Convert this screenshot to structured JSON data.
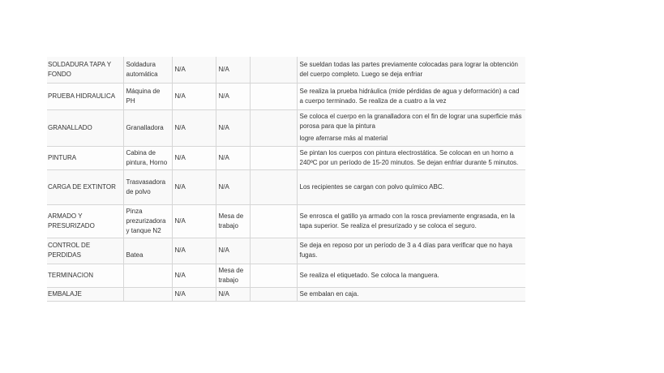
{
  "rows": [
    {
      "process": "SOLDADURA TAPA Y FONDO",
      "machine": "Soldadura automática",
      "c3": "N/A",
      "c4": "N/A",
      "c5": "",
      "description": [
        "Se sueldan todas las partes previamente colocadas para lograr la obtención del cuerpo completo. Luego se deja enfriar"
      ]
    },
    {
      "process": "PRUEBA HIDRAULICA",
      "machine": "Máquina de PH",
      "c3": "N/A",
      "c4": "N/A",
      "c5": "",
      "description": [
        "Se realiza la prueba hidráulica (mide pérdidas de agua y deformación) a cad a cuerpo terminado. Se realiza de a cuatro a la vez"
      ]
    },
    {
      "process": "GRANALLADO",
      "machine": "Granalladora",
      "c3": "N/A",
      "c4": "N/A",
      "c5": "",
      "description": [
        "Se coloca el cuerpo en la granalladora con el fin de lograr una superficie más porosa para que la pintura",
        "logre aferrarse más al material"
      ]
    },
    {
      "process": "PINTURA",
      "machine": "Cabina de pintura, Horno",
      "c3": "N/A",
      "c4": "N/A",
      "c5": "",
      "description": [
        "Se pintan los cuerpos con pintura electrostática. Se colocan en un horno a 240ºC por un período de 15-20 minutos. Se dejan enfriar durante 5 minutos."
      ]
    },
    {
      "process": "CARGA DE EXTINTOR",
      "machine": "Trasvasadora de polvo",
      "c3": "N/A",
      "c4": "N/A",
      "c5": "",
      "description": [
        "Los recipientes se cargan con polvo químico ABC."
      ]
    },
    {
      "process": "ARMADO Y PRESURIZADO",
      "machine": "Pinza prezurizadora y tanque N2",
      "c3": "N/A",
      "c4": "Mesa de trabajo",
      "c5": "",
      "description": [
        "Se enrosca el gatillo ya armado con la rosca previamente engrasada, en la tapa superior. Se realiza el presurizado y se coloca el seguro."
      ]
    },
    {
      "process": "CONTROL DE PERDIDAS",
      "machine": "Batea",
      "c3": "N/A",
      "c4": "N/A",
      "c5": "",
      "description": [
        "Se deja en reposo por un período de 3 a 4 días para verificar que no haya fugas."
      ]
    },
    {
      "process": "TERMINACION",
      "machine": "",
      "c3": "N/A",
      "c4": "Mesa de trabajo",
      "c5": "",
      "description": [
        "Se realiza el etiquetado. Se coloca la manguera."
      ]
    },
    {
      "process": "EMBALAJE",
      "machine": "",
      "c3": "N/A",
      "c4": "N/A",
      "c5": "",
      "description": [
        "Se embalan en caja."
      ]
    }
  ]
}
